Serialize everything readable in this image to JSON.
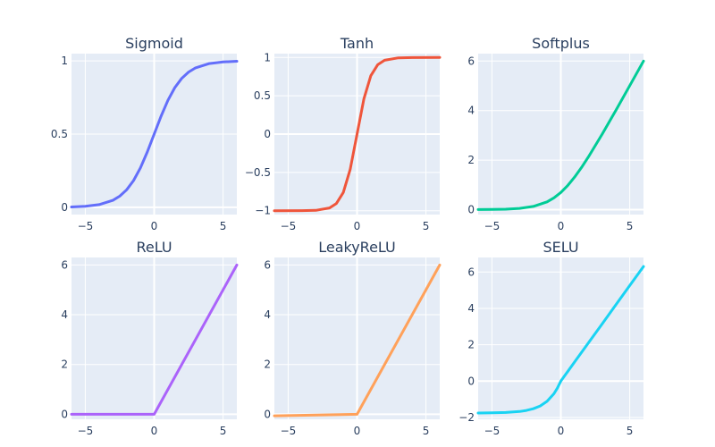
{
  "chart_data": [
    {
      "type": "line",
      "title": "Sigmoid",
      "color": "#636EFA",
      "xlim": [
        -6,
        6
      ],
      "ylim": [
        -0.05,
        1.05
      ],
      "xticks": [
        -5,
        0,
        5
      ],
      "xtick_labels": [
        "−5",
        "0",
        "5"
      ],
      "yticks": [
        0,
        0.5,
        1
      ],
      "ytick_labels": [
        "0",
        "0.5",
        "1"
      ],
      "x": [
        -6,
        -5,
        -4,
        -3,
        -2.5,
        -2,
        -1.5,
        -1,
        -0.5,
        0,
        0.5,
        1,
        1.5,
        2,
        2.5,
        3,
        4,
        5,
        6
      ],
      "y": [
        0.002,
        0.007,
        0.018,
        0.047,
        0.076,
        0.119,
        0.182,
        0.269,
        0.378,
        0.5,
        0.622,
        0.731,
        0.818,
        0.881,
        0.924,
        0.953,
        0.982,
        0.993,
        0.998
      ]
    },
    {
      "type": "line",
      "title": "Tanh",
      "color": "#EF553B",
      "xlim": [
        -6,
        6
      ],
      "ylim": [
        -1.05,
        1.05
      ],
      "xticks": [
        -5,
        0,
        5
      ],
      "xtick_labels": [
        "−5",
        "0",
        "5"
      ],
      "yticks": [
        -1,
        -0.5,
        0,
        0.5,
        1
      ],
      "ytick_labels": [
        "−1",
        "−0.5",
        "0",
        "0.5",
        "1"
      ],
      "x": [
        -6,
        -4,
        -3,
        -2,
        -1.5,
        -1,
        -0.5,
        0,
        0.5,
        1,
        1.5,
        2,
        3,
        4,
        6
      ],
      "y": [
        -1,
        -0.999,
        -0.995,
        -0.964,
        -0.905,
        -0.762,
        -0.462,
        0,
        0.462,
        0.762,
        0.905,
        0.964,
        0.995,
        0.999,
        1
      ]
    },
    {
      "type": "line",
      "title": "Softplus",
      "color": "#00CC96",
      "xlim": [
        -6,
        6
      ],
      "ylim": [
        -0.2,
        6.3
      ],
      "xticks": [
        -5,
        0,
        5
      ],
      "xtick_labels": [
        "−5",
        "0",
        "5"
      ],
      "yticks": [
        0,
        2,
        4,
        6
      ],
      "ytick_labels": [
        "0",
        "2",
        "4",
        "6"
      ],
      "x": [
        -6,
        -5,
        -4,
        -3,
        -2,
        -1,
        -0.5,
        0,
        0.5,
        1,
        1.5,
        2,
        3,
        4,
        5,
        6
      ],
      "y": [
        0.002,
        0.007,
        0.018,
        0.049,
        0.127,
        0.313,
        0.474,
        0.693,
        0.974,
        1.313,
        1.701,
        2.127,
        3.049,
        4.018,
        5.007,
        6.002
      ]
    },
    {
      "type": "line",
      "title": "ReLU",
      "color": "#AB63FA",
      "xlim": [
        -6,
        6
      ],
      "ylim": [
        -0.2,
        6.3
      ],
      "xticks": [
        -5,
        0,
        5
      ],
      "xtick_labels": [
        "−5",
        "0",
        "5"
      ],
      "yticks": [
        0,
        2,
        4,
        6
      ],
      "ytick_labels": [
        "0",
        "2",
        "4",
        "6"
      ],
      "x": [
        -6,
        0,
        6
      ],
      "y": [
        0,
        0,
        6
      ]
    },
    {
      "type": "line",
      "title": "LeakyReLU",
      "color": "#FFA15A",
      "xlim": [
        -6,
        6
      ],
      "ylim": [
        -0.2,
        6.3
      ],
      "xticks": [
        -5,
        0,
        5
      ],
      "xtick_labels": [
        "−5",
        "0",
        "5"
      ],
      "yticks": [
        0,
        2,
        4,
        6
      ],
      "ytick_labels": [
        "0",
        "2",
        "4",
        "6"
      ],
      "x": [
        -6,
        0,
        6
      ],
      "y": [
        -0.06,
        0,
        6
      ]
    },
    {
      "type": "line",
      "title": "SELU",
      "color": "#19D3F3",
      "xlim": [
        -6,
        6
      ],
      "ylim": [
        -2.1,
        6.8
      ],
      "xticks": [
        -5,
        0,
        5
      ],
      "xtick_labels": [
        "−5",
        "0",
        "5"
      ],
      "yticks": [
        -2,
        0,
        2,
        4,
        6
      ],
      "ytick_labels": [
        "−2",
        "0",
        "2",
        "4",
        "6"
      ],
      "x": [
        -6,
        -5,
        -4,
        -3,
        -2.5,
        -2,
        -1.5,
        -1,
        -0.5,
        -0.25,
        0,
        1,
        2,
        3,
        4,
        5,
        6
      ],
      "y": [
        -1.754,
        -1.746,
        -1.726,
        -1.67,
        -1.614,
        -1.52,
        -1.365,
        -1.111,
        -0.692,
        -0.389,
        0,
        1.051,
        2.101,
        3.152,
        4.203,
        5.254,
        6.304
      ]
    }
  ]
}
